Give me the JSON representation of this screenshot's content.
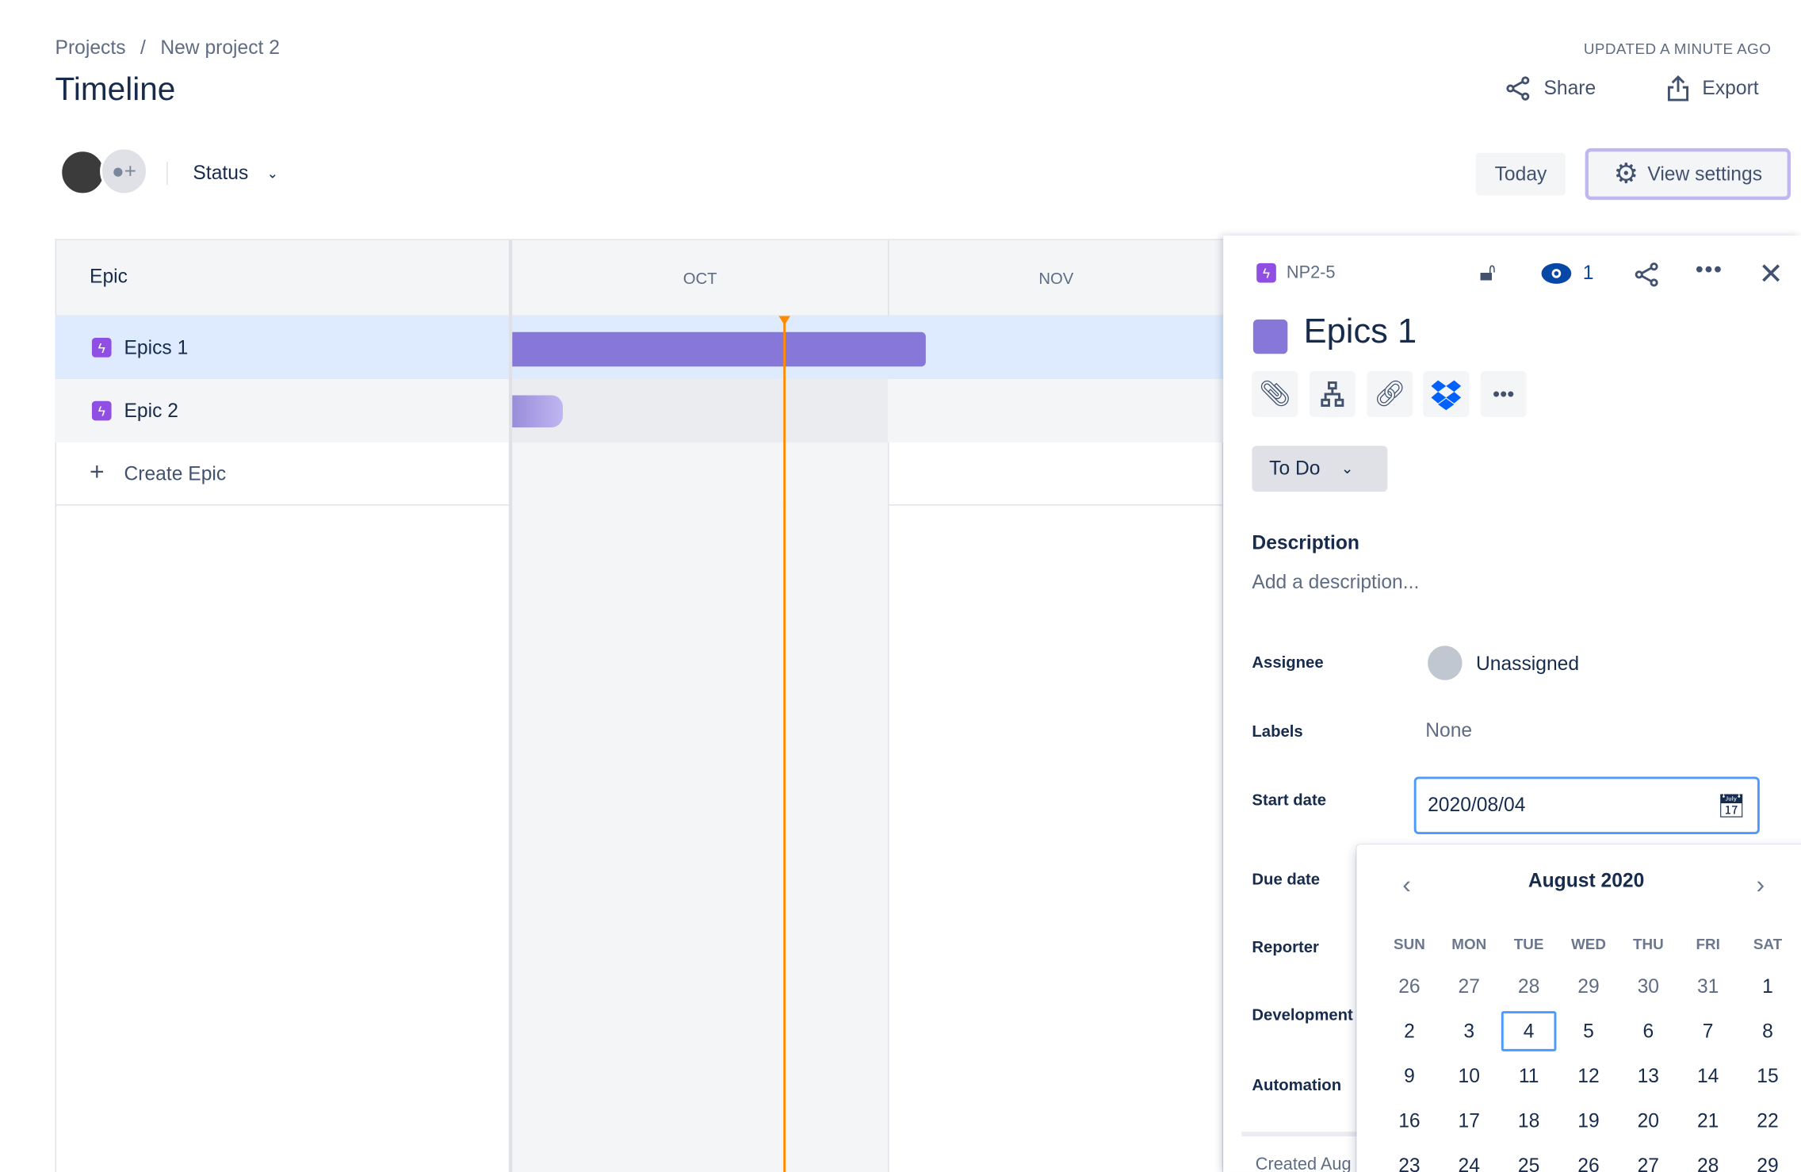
{
  "breadcrumb": {
    "root": "Projects",
    "sep": "/",
    "project": "New project 2"
  },
  "title": "Timeline",
  "updated": "UPDATED A MINUTE AGO",
  "actions": {
    "share": "Share",
    "export": "Export"
  },
  "filters": {
    "status": "Status"
  },
  "toolbar": {
    "today": "Today",
    "view_settings": "View settings"
  },
  "timeline": {
    "column_header": "Epic",
    "months": [
      "OCT",
      "NOV"
    ],
    "rows": [
      {
        "label": "Epics 1",
        "selected": true
      },
      {
        "label": "Epic 2",
        "selected": false
      }
    ],
    "create": "Create Epic",
    "today_color": "#ff8b00",
    "bar_color": "#8777d9"
  },
  "panel": {
    "key": "NP2-5",
    "watchers": "1",
    "title": "Epics 1",
    "status": "To Do",
    "description_label": "Description",
    "description_placeholder": "Add a description...",
    "fields": {
      "assignee_label": "Assignee",
      "assignee": "Unassigned",
      "labels_label": "Labels",
      "labels": "None",
      "start_label": "Start date",
      "start": "2020/08/04",
      "due_label": "Due date",
      "reporter_label": "Reporter",
      "development_label": "Development",
      "automation_label": "Automation",
      "created": "Created Aug"
    }
  },
  "calendar": {
    "month": "August 2020",
    "weekdays": [
      "SUN",
      "MON",
      "TUE",
      "WED",
      "THU",
      "FRI",
      "SAT"
    ],
    "weeks": [
      [
        "26",
        "27",
        "28",
        "29",
        "30",
        "31",
        "1"
      ],
      [
        "2",
        "3",
        "4",
        "5",
        "6",
        "7",
        "8"
      ],
      [
        "9",
        "10",
        "11",
        "12",
        "13",
        "14",
        "15"
      ],
      [
        "16",
        "17",
        "18",
        "19",
        "20",
        "21",
        "22"
      ],
      [
        "23",
        "24",
        "25",
        "26",
        "27",
        "28",
        "29"
      ]
    ],
    "selected": "4"
  }
}
